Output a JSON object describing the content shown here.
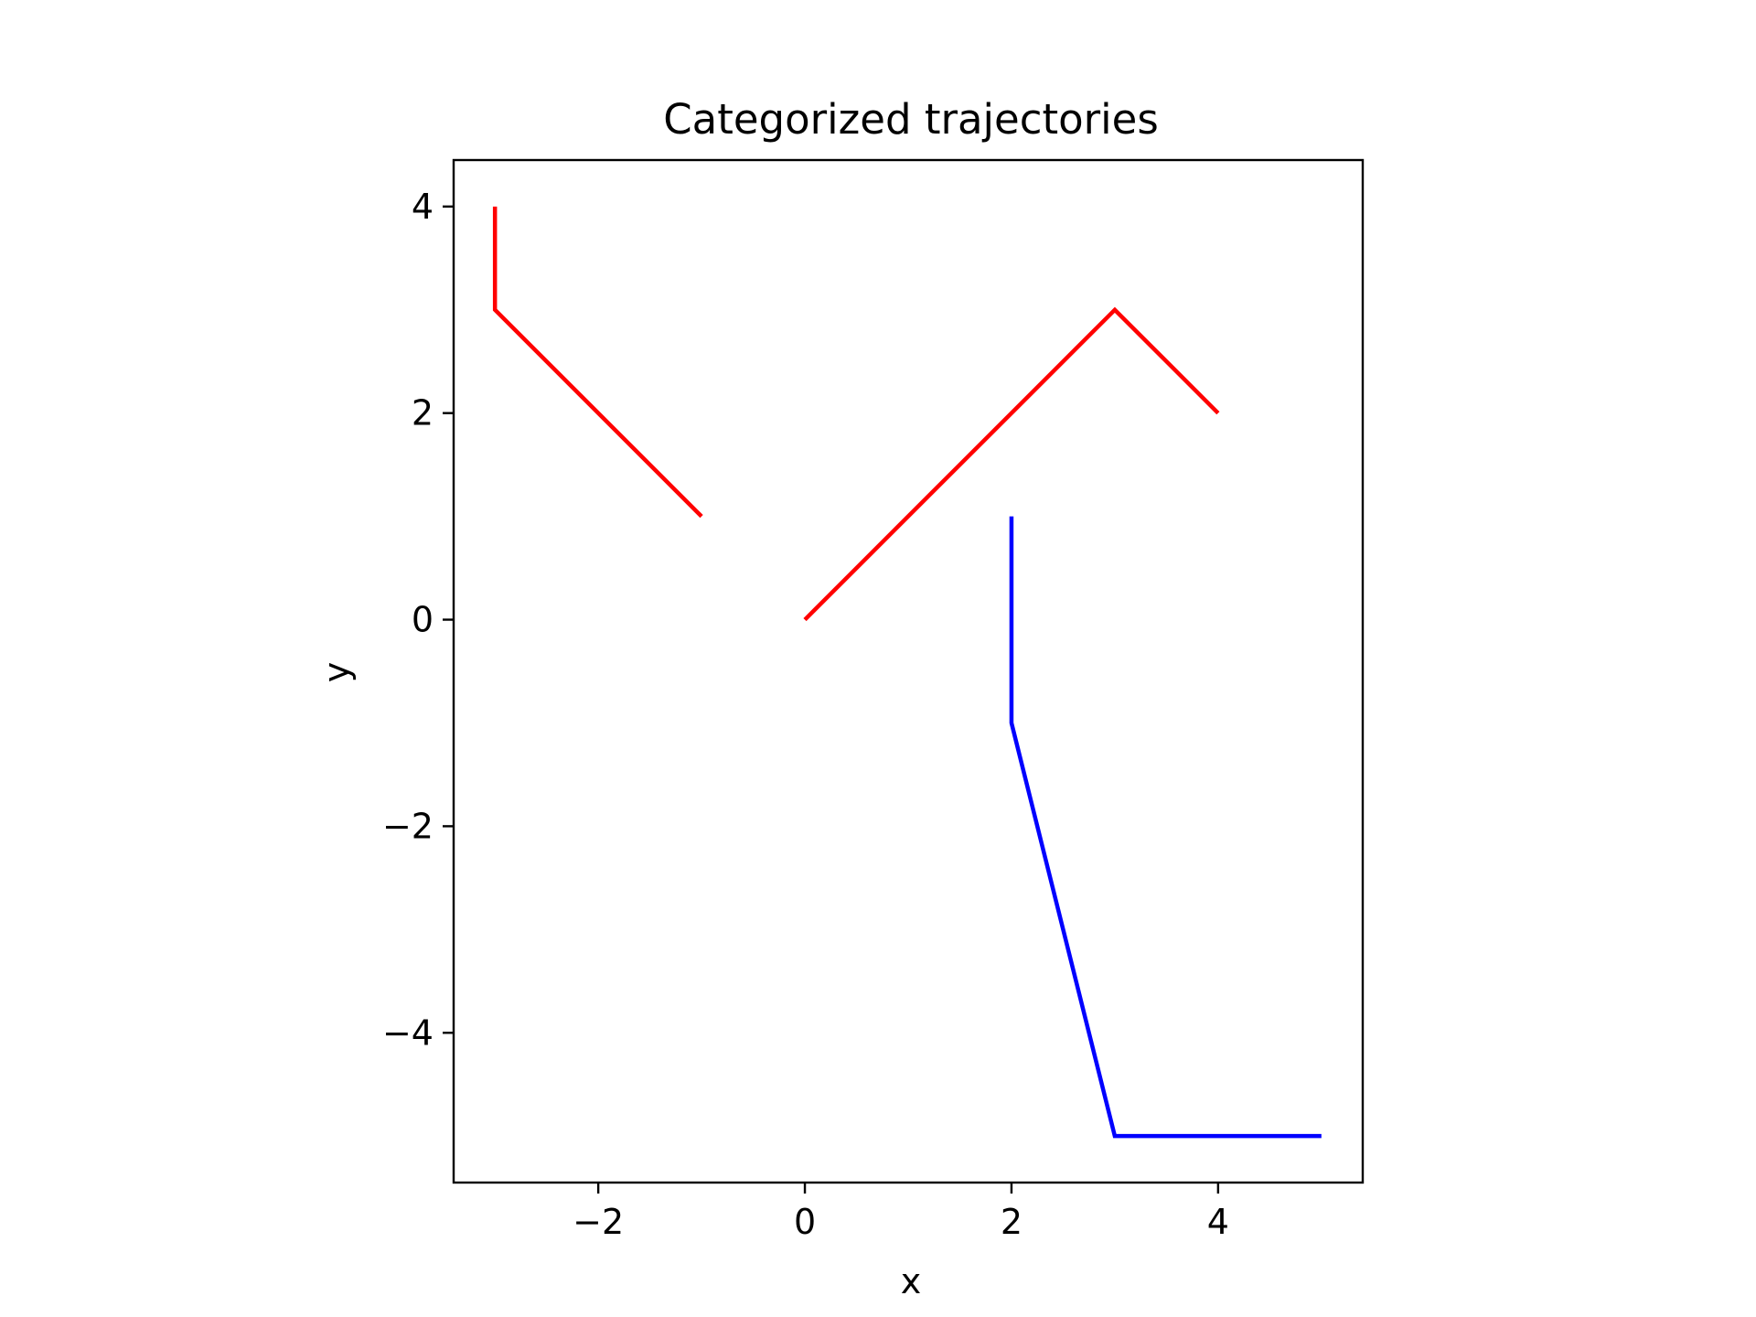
{
  "chart_data": {
    "type": "line",
    "title": "Categorized trajectories",
    "xlabel": "x",
    "ylabel": "y",
    "xlim": [
      -3.4,
      5.4
    ],
    "ylim": [
      -5.45,
      4.45
    ],
    "xticks": [
      -2,
      0,
      2,
      4
    ],
    "yticks": [
      -4,
      -2,
      0,
      2,
      4
    ],
    "xtick_labels": [
      "−2",
      "0",
      "2",
      "4"
    ],
    "ytick_labels": [
      "−4",
      "−2",
      "0",
      "2",
      "4"
    ],
    "grid": false,
    "series": [
      {
        "color": "#ff0000",
        "x": [
          -3,
          -3,
          -1
        ],
        "y": [
          4,
          3,
          1
        ]
      },
      {
        "color": "#ff0000",
        "x": [
          0,
          3,
          4
        ],
        "y": [
          0,
          3,
          2
        ]
      },
      {
        "color": "#0000ff",
        "x": [
          2,
          2,
          3,
          5
        ],
        "y": [
          1,
          -1,
          -5,
          -5
        ]
      }
    ]
  }
}
